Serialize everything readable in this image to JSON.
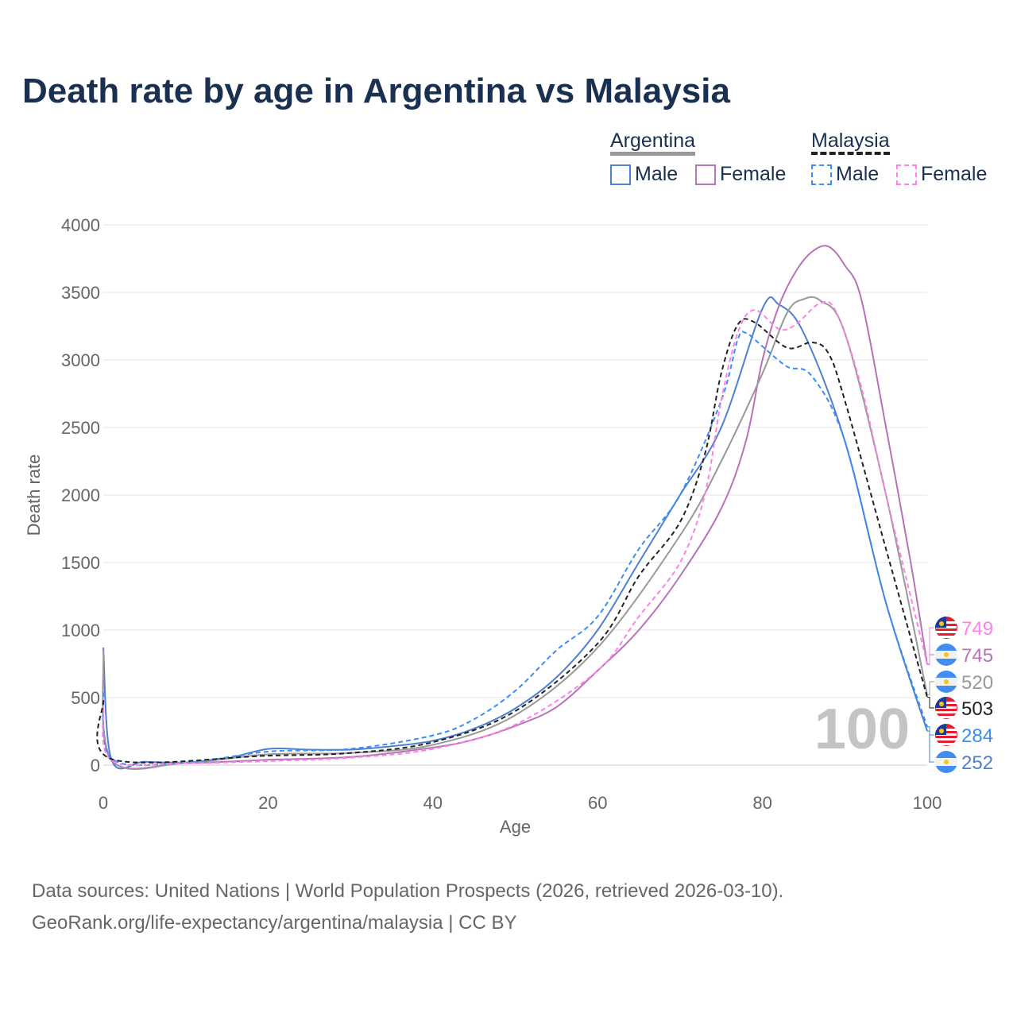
{
  "title": "Death rate by age in Argentina vs Malaysia",
  "legend": {
    "group1": "Argentina",
    "group2": "Malaysia",
    "male": "Male",
    "female": "Female"
  },
  "source_line1": "Data sources: United Nations | World Population Prospects (2026, retrieved 2026-03-10).",
  "source_line2": "GeoRank.org/life-expectancy/argentina/malaysia | CC BY",
  "chart_data": {
    "type": "line",
    "title": "Death rate by age in Argentina vs Malaysia",
    "xlabel": "Age",
    "ylabel": "Death rate",
    "xlim": [
      0,
      100
    ],
    "ylim": [
      0,
      4000
    ],
    "xticks": [
      0,
      20,
      40,
      60,
      80,
      100
    ],
    "yticks": [
      0,
      500,
      1000,
      1500,
      2000,
      2500,
      3000,
      3500,
      4000
    ],
    "grid": true,
    "legend_position": "top-right",
    "age_indicator": "100",
    "series": [
      {
        "name": "Argentina Male",
        "color": "#4f7fd0",
        "dash": false,
        "label": "252",
        "flag": "argentina",
        "x": [
          0,
          1,
          5,
          10,
          15,
          20,
          25,
          30,
          35,
          40,
          45,
          50,
          55,
          60,
          65,
          70,
          75,
          80,
          82,
          85,
          90,
          95,
          100
        ],
        "y": [
          870,
          40,
          25,
          20,
          50,
          120,
          115,
          115,
          140,
          180,
          270,
          420,
          650,
          1000,
          1500,
          2000,
          2500,
          3380,
          3410,
          3200,
          2400,
          1200,
          252
        ]
      },
      {
        "name": "Argentina Female",
        "color": "#b574b5",
        "dash": false,
        "label": "745",
        "flag": "argentina",
        "x": [
          0,
          1,
          10,
          20,
          30,
          40,
          45,
          50,
          55,
          60,
          65,
          70,
          75,
          78,
          80,
          82,
          84,
          86,
          88,
          90,
          92,
          95,
          98,
          100
        ],
        "y": [
          760,
          35,
          15,
          40,
          60,
          130,
          190,
          290,
          430,
          700,
          1000,
          1400,
          1900,
          2400,
          3000,
          3400,
          3650,
          3800,
          3840,
          3700,
          3450,
          2500,
          1500,
          745
        ]
      },
      {
        "name": "Argentina Total",
        "color": "#999999",
        "dash": false,
        "label": "520",
        "flag": "argentina",
        "x": [
          0,
          1,
          10,
          20,
          30,
          40,
          50,
          60,
          70,
          75,
          80,
          83,
          85,
          87,
          90,
          95,
          100
        ],
        "y": [
          850,
          40,
          18,
          80,
          90,
          150,
          370,
          870,
          1700,
          2250,
          2900,
          3350,
          3450,
          3440,
          3200,
          2000,
          520
        ]
      },
      {
        "name": "Malaysia Male",
        "color": "#3b8cf5",
        "dash": true,
        "label": "284",
        "flag": "malaysia",
        "x": [
          0,
          1,
          10,
          20,
          30,
          40,
          45,
          50,
          55,
          60,
          65,
          70,
          75,
          77,
          78,
          80,
          83,
          86,
          90,
          95,
          100
        ],
        "y": [
          540,
          50,
          20,
          100,
          120,
          220,
          340,
          550,
          850,
          1100,
          1600,
          2000,
          2700,
          3150,
          3200,
          3100,
          2950,
          2880,
          2400,
          1200,
          284
        ]
      },
      {
        "name": "Malaysia Female",
        "color": "#ff80e8",
        "dash": true,
        "label": "749",
        "flag": "malaysia",
        "x": [
          0,
          1,
          10,
          20,
          30,
          40,
          50,
          60,
          65,
          70,
          73,
          75,
          77,
          79,
          82,
          84,
          87,
          89,
          92,
          95,
          100
        ],
        "y": [
          420,
          35,
          15,
          30,
          55,
          120,
          300,
          700,
          1100,
          1500,
          2000,
          2700,
          3200,
          3370,
          3230,
          3260,
          3420,
          3350,
          2800,
          2000,
          749
        ]
      },
      {
        "name": "Malaysia Total",
        "color": "#222222",
        "dash": true,
        "label": "503",
        "flag": "malaysia",
        "x": [
          0,
          1,
          20,
          30,
          40,
          50,
          60,
          65,
          70,
          73,
          75,
          77,
          79,
          83,
          86,
          88,
          90,
          95,
          100
        ],
        "y": [
          480,
          45,
          70,
          90,
          170,
          400,
          900,
          1400,
          1800,
          2300,
          2900,
          3260,
          3280,
          3090,
          3130,
          3050,
          2700,
          1600,
          503
        ]
      }
    ],
    "end_label_order": [
      "749",
      "745",
      "520",
      "503",
      "284",
      "252"
    ]
  }
}
